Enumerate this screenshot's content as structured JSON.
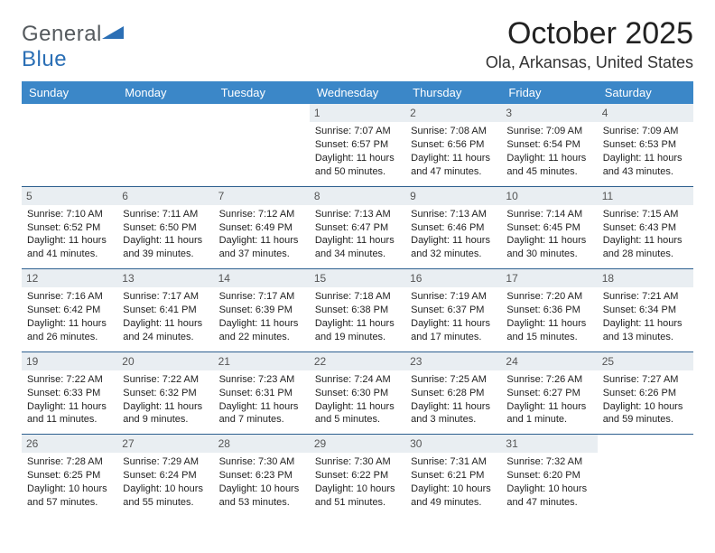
{
  "brand": {
    "text1": "General",
    "text2": "Blue"
  },
  "title": "October 2025",
  "location": "Ola, Arkansas, United States",
  "colors": {
    "header_bg": "#3b87c8",
    "header_text": "#ffffff",
    "daynum_bg": "#e9eef2",
    "row_border": "#2d5f8f",
    "brand_gray": "#555a5e",
    "brand_blue": "#2b6fb5",
    "page_bg": "#ffffff"
  },
  "weekdays": [
    "Sunday",
    "Monday",
    "Tuesday",
    "Wednesday",
    "Thursday",
    "Friday",
    "Saturday"
  ],
  "weeks": [
    [
      null,
      null,
      null,
      {
        "n": "1",
        "sunrise": "7:07 AM",
        "sunset": "6:57 PM",
        "daylight": "11 hours and 50 minutes."
      },
      {
        "n": "2",
        "sunrise": "7:08 AM",
        "sunset": "6:56 PM",
        "daylight": "11 hours and 47 minutes."
      },
      {
        "n": "3",
        "sunrise": "7:09 AM",
        "sunset": "6:54 PM",
        "daylight": "11 hours and 45 minutes."
      },
      {
        "n": "4",
        "sunrise": "7:09 AM",
        "sunset": "6:53 PM",
        "daylight": "11 hours and 43 minutes."
      }
    ],
    [
      {
        "n": "5",
        "sunrise": "7:10 AM",
        "sunset": "6:52 PM",
        "daylight": "11 hours and 41 minutes."
      },
      {
        "n": "6",
        "sunrise": "7:11 AM",
        "sunset": "6:50 PM",
        "daylight": "11 hours and 39 minutes."
      },
      {
        "n": "7",
        "sunrise": "7:12 AM",
        "sunset": "6:49 PM",
        "daylight": "11 hours and 37 minutes."
      },
      {
        "n": "8",
        "sunrise": "7:13 AM",
        "sunset": "6:47 PM",
        "daylight": "11 hours and 34 minutes."
      },
      {
        "n": "9",
        "sunrise": "7:13 AM",
        "sunset": "6:46 PM",
        "daylight": "11 hours and 32 minutes."
      },
      {
        "n": "10",
        "sunrise": "7:14 AM",
        "sunset": "6:45 PM",
        "daylight": "11 hours and 30 minutes."
      },
      {
        "n": "11",
        "sunrise": "7:15 AM",
        "sunset": "6:43 PM",
        "daylight": "11 hours and 28 minutes."
      }
    ],
    [
      {
        "n": "12",
        "sunrise": "7:16 AM",
        "sunset": "6:42 PM",
        "daylight": "11 hours and 26 minutes."
      },
      {
        "n": "13",
        "sunrise": "7:17 AM",
        "sunset": "6:41 PM",
        "daylight": "11 hours and 24 minutes."
      },
      {
        "n": "14",
        "sunrise": "7:17 AM",
        "sunset": "6:39 PM",
        "daylight": "11 hours and 22 minutes."
      },
      {
        "n": "15",
        "sunrise": "7:18 AM",
        "sunset": "6:38 PM",
        "daylight": "11 hours and 19 minutes."
      },
      {
        "n": "16",
        "sunrise": "7:19 AM",
        "sunset": "6:37 PM",
        "daylight": "11 hours and 17 minutes."
      },
      {
        "n": "17",
        "sunrise": "7:20 AM",
        "sunset": "6:36 PM",
        "daylight": "11 hours and 15 minutes."
      },
      {
        "n": "18",
        "sunrise": "7:21 AM",
        "sunset": "6:34 PM",
        "daylight": "11 hours and 13 minutes."
      }
    ],
    [
      {
        "n": "19",
        "sunrise": "7:22 AM",
        "sunset": "6:33 PM",
        "daylight": "11 hours and 11 minutes."
      },
      {
        "n": "20",
        "sunrise": "7:22 AM",
        "sunset": "6:32 PM",
        "daylight": "11 hours and 9 minutes."
      },
      {
        "n": "21",
        "sunrise": "7:23 AM",
        "sunset": "6:31 PM",
        "daylight": "11 hours and 7 minutes."
      },
      {
        "n": "22",
        "sunrise": "7:24 AM",
        "sunset": "6:30 PM",
        "daylight": "11 hours and 5 minutes."
      },
      {
        "n": "23",
        "sunrise": "7:25 AM",
        "sunset": "6:28 PM",
        "daylight": "11 hours and 3 minutes."
      },
      {
        "n": "24",
        "sunrise": "7:26 AM",
        "sunset": "6:27 PM",
        "daylight": "11 hours and 1 minute."
      },
      {
        "n": "25",
        "sunrise": "7:27 AM",
        "sunset": "6:26 PM",
        "daylight": "10 hours and 59 minutes."
      }
    ],
    [
      {
        "n": "26",
        "sunrise": "7:28 AM",
        "sunset": "6:25 PM",
        "daylight": "10 hours and 57 minutes."
      },
      {
        "n": "27",
        "sunrise": "7:29 AM",
        "sunset": "6:24 PM",
        "daylight": "10 hours and 55 minutes."
      },
      {
        "n": "28",
        "sunrise": "7:30 AM",
        "sunset": "6:23 PM",
        "daylight": "10 hours and 53 minutes."
      },
      {
        "n": "29",
        "sunrise": "7:30 AM",
        "sunset": "6:22 PM",
        "daylight": "10 hours and 51 minutes."
      },
      {
        "n": "30",
        "sunrise": "7:31 AM",
        "sunset": "6:21 PM",
        "daylight": "10 hours and 49 minutes."
      },
      {
        "n": "31",
        "sunrise": "7:32 AM",
        "sunset": "6:20 PM",
        "daylight": "10 hours and 47 minutes."
      },
      null
    ]
  ],
  "labels": {
    "sunrise": "Sunrise:",
    "sunset": "Sunset:",
    "daylight": "Daylight:"
  }
}
